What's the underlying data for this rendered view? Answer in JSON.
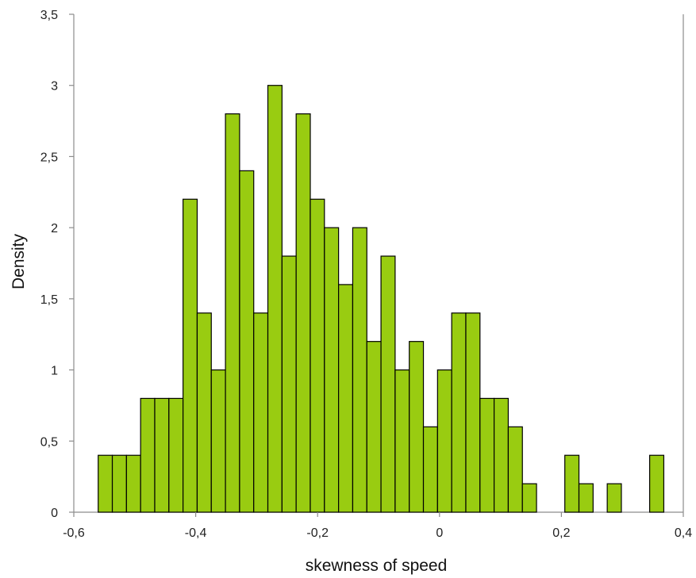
{
  "chart_data": {
    "type": "bar",
    "title": "",
    "xlabel": "skewness of speed",
    "ylabel": "Density",
    "xlim": [
      -0.6,
      0.4
    ],
    "ylim": [
      0,
      3.5
    ],
    "bin_width": 0.0232,
    "x_bin_starts": [
      -0.56,
      -0.5368,
      -0.5136,
      -0.4904,
      -0.4672,
      -0.444,
      -0.4208,
      -0.3976,
      -0.3744,
      -0.3512,
      -0.328,
      -0.3048,
      -0.2816,
      -0.2584,
      -0.2352,
      -0.212,
      -0.1888,
      -0.1656,
      -0.1424,
      -0.1192,
      -0.096,
      -0.0728,
      -0.0496,
      -0.0264,
      -0.0032,
      0.02,
      0.0432,
      0.0664,
      0.0896,
      0.1128,
      0.136,
      0.1592,
      0.1824,
      0.2056,
      0.2288,
      0.252,
      0.2752,
      0.2984,
      0.3216,
      0.3448
    ],
    "values": [
      0.4,
      0.4,
      0.4,
      0.8,
      0.8,
      0.8,
      2.2,
      1.4,
      1.0,
      2.8,
      2.4,
      1.4,
      3.0,
      1.8,
      2.8,
      2.2,
      2.0,
      1.6,
      2.0,
      1.2,
      1.8,
      1.0,
      1.2,
      0.6,
      1.0,
      1.4,
      1.4,
      0.8,
      0.8,
      0.6,
      0.2,
      0.0,
      0.0,
      0.4,
      0.2,
      0.0,
      0.2,
      0.0,
      0.0,
      0.4
    ],
    "x_ticks": [
      "-0,6",
      "-0,4",
      "-0,2",
      "0",
      "0,2",
      "0,4"
    ],
    "x_tick_values": [
      -0.6,
      -0.4,
      -0.2,
      0,
      0.2,
      0.4
    ],
    "y_ticks": [
      "0",
      "0,5",
      "1",
      "1,5",
      "2",
      "2,5",
      "3",
      "3,5"
    ],
    "y_tick_values": [
      0,
      0.5,
      1,
      1.5,
      2,
      2.5,
      3,
      3.5
    ],
    "grid": false,
    "legend": "none",
    "colors": {
      "bar_fill": "#99cc11",
      "bar_stroke": "#000000",
      "axis": "#8c8c8c"
    }
  }
}
